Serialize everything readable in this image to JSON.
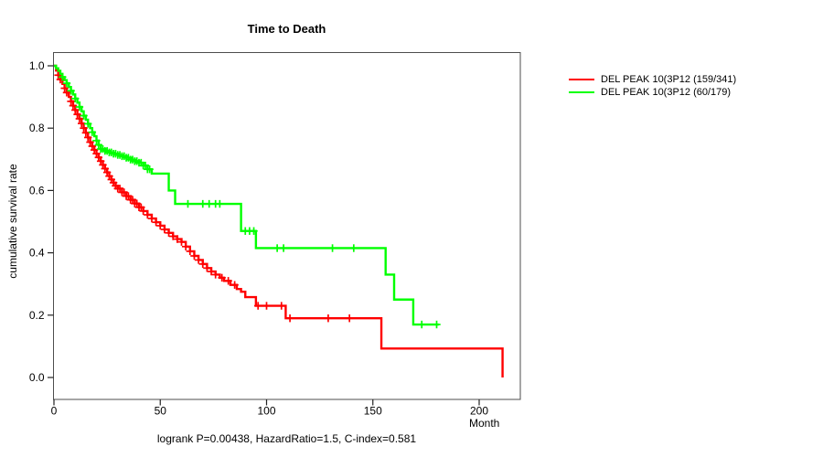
{
  "chart_data": {
    "type": "line",
    "subtype": "kaplan-meier-step",
    "title": "Time to Death",
    "xlabel": "Month",
    "ylabel": "cumulative survival rate",
    "annotation": "logrank P=0.00438, HazardRatio=1.5, C-index=0.581",
    "xlim": [
      0,
      220
    ],
    "ylim": [
      0.0,
      1.0
    ],
    "x_ticks": [
      0,
      50,
      100,
      150,
      200
    ],
    "y_ticks": [
      "0.0",
      "0.2",
      "0.4",
      "0.6",
      "0.8",
      "1.0"
    ],
    "grid": "off",
    "legend_position": "right-outside",
    "frame_color": "#4d4d4d",
    "tick_color": "#222222",
    "series": [
      {
        "name": "DEL PEAK 10(3P12 (159/341)",
        "color": "#ff0000",
        "events": "159/341",
        "points": [
          [
            0,
            1
          ],
          [
            1,
            0.985
          ],
          [
            2,
            0.97
          ],
          [
            3,
            0.956
          ],
          [
            4,
            0.942
          ],
          [
            5,
            0.928
          ],
          [
            6,
            0.914
          ],
          [
            7,
            0.9
          ],
          [
            8,
            0.886
          ],
          [
            9,
            0.872
          ],
          [
            10,
            0.858
          ],
          [
            11,
            0.844
          ],
          [
            12,
            0.83
          ],
          [
            13,
            0.815
          ],
          [
            14,
            0.8
          ],
          [
            15,
            0.785
          ],
          [
            16,
            0.77
          ],
          [
            17,
            0.755
          ],
          [
            18,
            0.742
          ],
          [
            19,
            0.73
          ],
          [
            20,
            0.718
          ],
          [
            21,
            0.706
          ],
          [
            22,
            0.694
          ],
          [
            23,
            0.682
          ],
          [
            24,
            0.67
          ],
          [
            25,
            0.658
          ],
          [
            26,
            0.646
          ],
          [
            27,
            0.635
          ],
          [
            28,
            0.625
          ],
          [
            29,
            0.615
          ],
          [
            30,
            0.606
          ],
          [
            32,
            0.594
          ],
          [
            34,
            0.582
          ],
          [
            36,
            0.57
          ],
          [
            38,
            0.558
          ],
          [
            40,
            0.546
          ],
          [
            42,
            0.534
          ],
          [
            44,
            0.522
          ],
          [
            46,
            0.51
          ],
          [
            48,
            0.498
          ],
          [
            50,
            0.487
          ],
          [
            52,
            0.475
          ],
          [
            54,
            0.464
          ],
          [
            56,
            0.453
          ],
          [
            58,
            0.444
          ],
          [
            60,
            0.435
          ],
          [
            62,
            0.42
          ],
          [
            64,
            0.405
          ],
          [
            66,
            0.39
          ],
          [
            68,
            0.377
          ],
          [
            70,
            0.364
          ],
          [
            72,
            0.351
          ],
          [
            74,
            0.34
          ],
          [
            76,
            0.33
          ],
          [
            78,
            0.32
          ],
          [
            80,
            0.31
          ],
          [
            83,
            0.297
          ],
          [
            86,
            0.284
          ],
          [
            88,
            0.275
          ],
          [
            90,
            0.258
          ],
          [
            95,
            0.23
          ],
          [
            109,
            0.19
          ],
          [
            154,
            0.093
          ],
          [
            211,
            0
          ]
        ],
        "censor_months": [
          2,
          3,
          5,
          6,
          8,
          9,
          10,
          11,
          12,
          13,
          14,
          15,
          16,
          17,
          18,
          19,
          20,
          21,
          22,
          23,
          24,
          25,
          26,
          27,
          28,
          29,
          30,
          31,
          32,
          33,
          34,
          35,
          36,
          37,
          38,
          39,
          40,
          41,
          42,
          44,
          46,
          48,
          50,
          52,
          54,
          56,
          58,
          60,
          62,
          64,
          66,
          68,
          70,
          72,
          74,
          76,
          79,
          82,
          85,
          96,
          100,
          107,
          111,
          129,
          139
        ]
      },
      {
        "name": "DEL PEAK 10(3P12 (60/179)",
        "color": "#00ff00",
        "events": "60/179",
        "points": [
          [
            0,
            1
          ],
          [
            1,
            0.992
          ],
          [
            2,
            0.984
          ],
          [
            3,
            0.974
          ],
          [
            4,
            0.964
          ],
          [
            5,
            0.954
          ],
          [
            6,
            0.944
          ],
          [
            7,
            0.932
          ],
          [
            8,
            0.92
          ],
          [
            9,
            0.908
          ],
          [
            10,
            0.895
          ],
          [
            11,
            0.882
          ],
          [
            12,
            0.868
          ],
          [
            13,
            0.854
          ],
          [
            14,
            0.84
          ],
          [
            15,
            0.827
          ],
          [
            16,
            0.814
          ],
          [
            17,
            0.8
          ],
          [
            18,
            0.787
          ],
          [
            19,
            0.774
          ],
          [
            20,
            0.76
          ],
          [
            21,
            0.746
          ],
          [
            22,
            0.733
          ],
          [
            24,
            0.727
          ],
          [
            26,
            0.722
          ],
          [
            28,
            0.718
          ],
          [
            30,
            0.714
          ],
          [
            32,
            0.71
          ],
          [
            34,
            0.705
          ],
          [
            36,
            0.699
          ],
          [
            38,
            0.694
          ],
          [
            40,
            0.689
          ],
          [
            42,
            0.68
          ],
          [
            44,
            0.668
          ],
          [
            46,
            0.654
          ],
          [
            54,
            0.6
          ],
          [
            57,
            0.557
          ],
          [
            88,
            0.47
          ],
          [
            95,
            0.415
          ],
          [
            156,
            0.33
          ],
          [
            160,
            0.25
          ],
          [
            169,
            0.17
          ],
          [
            181,
            0.17
          ]
        ],
        "censor_months": [
          4,
          6,
          8,
          10,
          12,
          14,
          16,
          18,
          20,
          21,
          22,
          23,
          24,
          25,
          26,
          27,
          28,
          29,
          30,
          31,
          32,
          33,
          34,
          35,
          36,
          37,
          38,
          39,
          40,
          41,
          42,
          43,
          44,
          45,
          63,
          70,
          73,
          76,
          78,
          90,
          92,
          94,
          105,
          108,
          131,
          141,
          173,
          180
        ]
      }
    ]
  }
}
